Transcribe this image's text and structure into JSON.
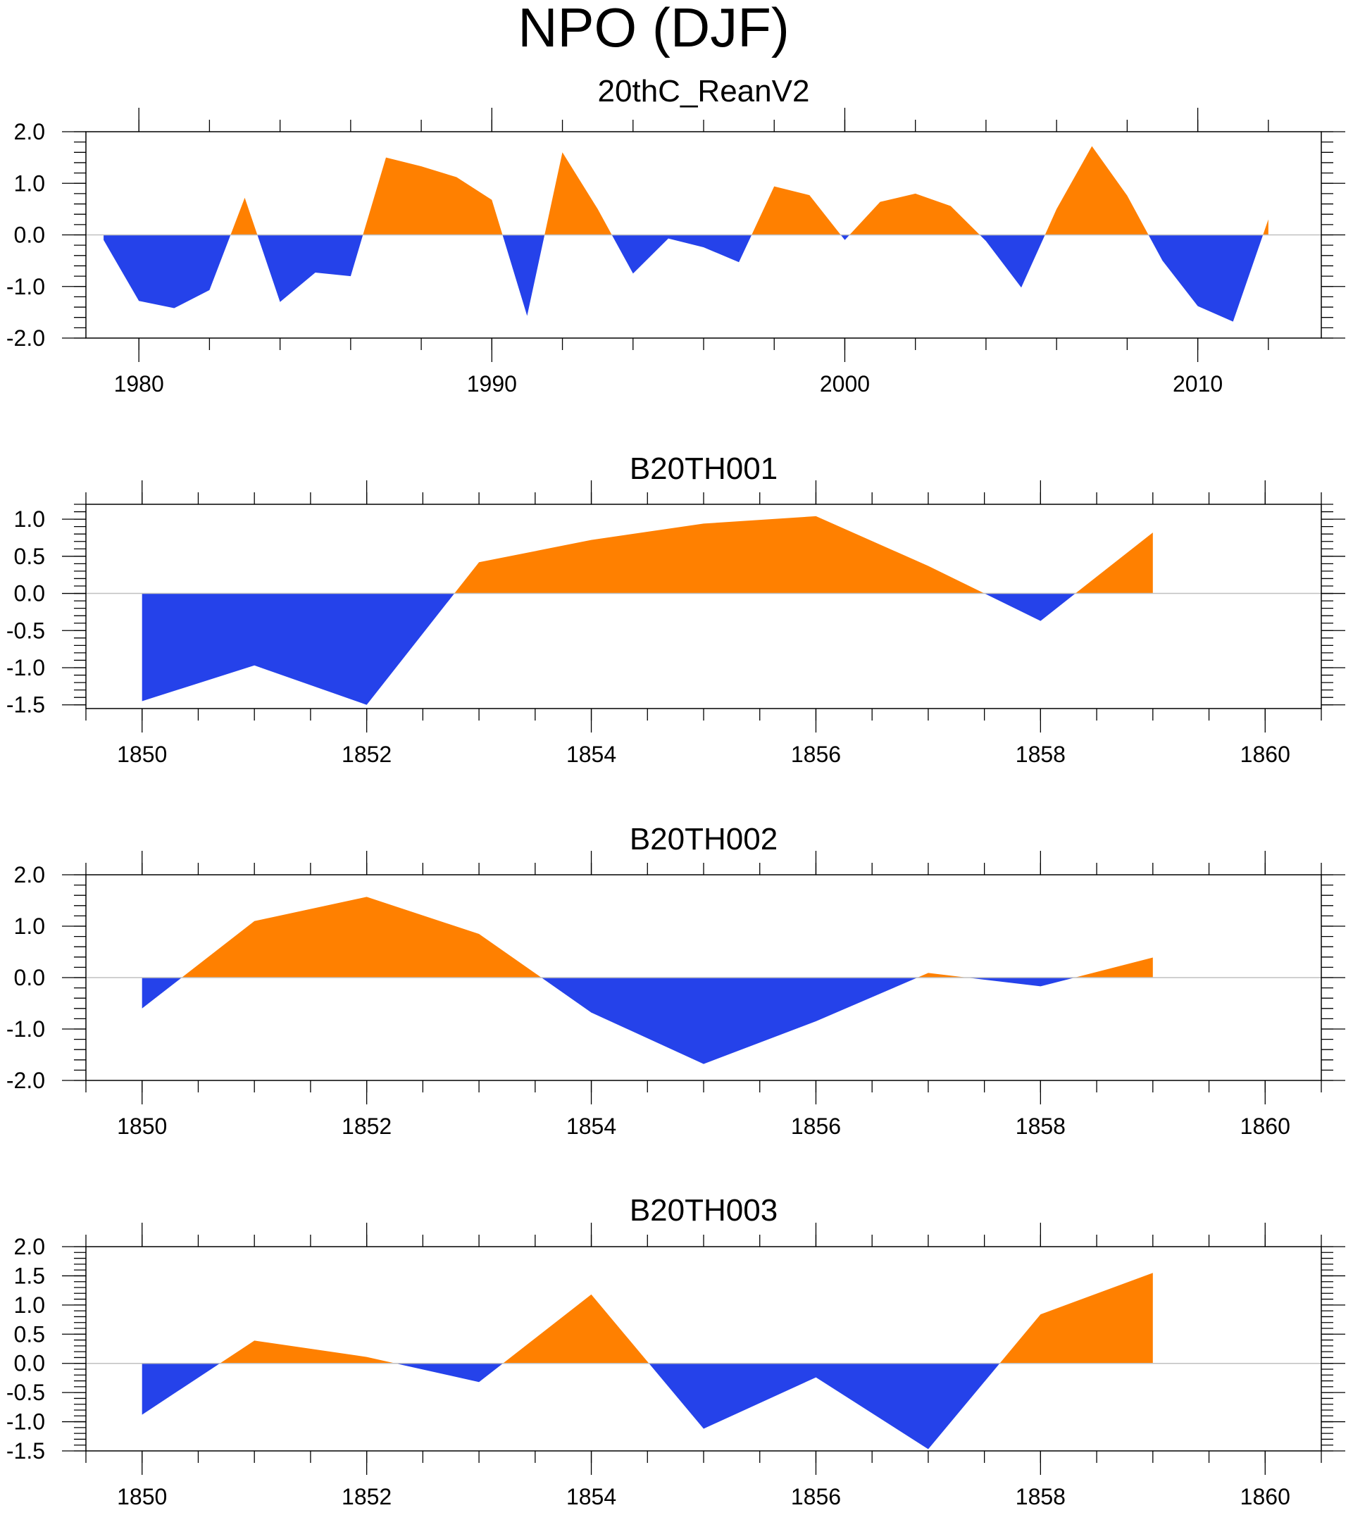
{
  "figure": {
    "title": "NPO (DJF)",
    "colors": {
      "positive": "#ff8000",
      "negative": "#2542ea",
      "frame": "#000000",
      "zero_line": "#c0c0c0"
    }
  },
  "chart_data": [
    {
      "type": "area",
      "title": "20thC_ReanV2",
      "x": [
        1979,
        1980,
        1981,
        1982,
        1983,
        1984,
        1985,
        1986,
        1987,
        1988,
        1989,
        1990,
        1991,
        1992,
        1993,
        1994,
        1995,
        1996,
        1997,
        1998,
        1999,
        2000,
        2001,
        2002,
        2003,
        2004,
        2005,
        2006,
        2007,
        2008,
        2009,
        2010,
        2011,
        2012
      ],
      "values": [
        -0.1,
        -1.28,
        -1.42,
        -1.07,
        0.72,
        -1.3,
        -0.73,
        -0.8,
        1.5,
        1.33,
        1.12,
        0.68,
        -1.57,
        1.6,
        0.5,
        -0.75,
        -0.07,
        -0.24,
        -0.53,
        0.94,
        0.77,
        -0.1,
        0.64,
        0.8,
        0.56,
        -0.12,
        -1.02,
        0.5,
        1.72,
        0.76,
        -0.5,
        -1.38,
        -1.68,
        0.3
      ],
      "xlim": [
        1978.5,
        2013.5
      ],
      "ylim": [
        -2.0,
        2.0
      ],
      "xticks": [
        1980,
        1990,
        2000,
        2010
      ],
      "xtick_labels": [
        "1980",
        "1990",
        "2000",
        "2010"
      ],
      "yticks": [
        -2.0,
        -1.0,
        0.0,
        1.0,
        2.0
      ],
      "ytick_labels": [
        "-2.0",
        "-1.0",
        "0.0",
        "1.0",
        "2.0"
      ],
      "xminor_step": 2,
      "yminor_step": 0.2
    },
    {
      "type": "area",
      "title": "B20TH001",
      "x": [
        1850,
        1851,
        1852,
        1853,
        1854,
        1855,
        1856,
        1857,
        1858,
        1859
      ],
      "values": [
        -1.45,
        -0.97,
        -1.5,
        0.42,
        0.72,
        0.94,
        1.04,
        0.37,
        -0.37,
        0.82
      ],
      "xlim": [
        1849.5,
        1860.5
      ],
      "ylim": [
        -1.55,
        1.2
      ],
      "xticks": [
        1850,
        1852,
        1854,
        1856,
        1858,
        1860
      ],
      "xtick_labels": [
        "1850",
        "1852",
        "1854",
        "1856",
        "1858",
        "1860"
      ],
      "yticks": [
        -1.5,
        -1.0,
        -0.5,
        0.0,
        0.5,
        1.0
      ],
      "ytick_labels": [
        "-1.5",
        "-1.0",
        "-0.5",
        "0.0",
        "0.5",
        "1.0"
      ],
      "xminor_step": 0.5,
      "yminor_step": 0.1
    },
    {
      "type": "area",
      "title": "B20TH002",
      "x": [
        1850,
        1851,
        1852,
        1853,
        1854,
        1855,
        1856,
        1857,
        1858,
        1859
      ],
      "values": [
        -0.6,
        1.1,
        1.57,
        0.85,
        -0.68,
        -1.68,
        -0.85,
        0.09,
        -0.17,
        0.39
      ],
      "xlim": [
        1849.5,
        1860.5
      ],
      "ylim": [
        -2.0,
        2.0
      ],
      "xticks": [
        1850,
        1852,
        1854,
        1856,
        1858,
        1860
      ],
      "xtick_labels": [
        "1850",
        "1852",
        "1854",
        "1856",
        "1858",
        "1860"
      ],
      "yticks": [
        -2.0,
        -1.0,
        0.0,
        1.0,
        2.0
      ],
      "ytick_labels": [
        "-2.0",
        "-1.0",
        "0.0",
        "1.0",
        "2.0"
      ],
      "xminor_step": 0.5,
      "yminor_step": 0.2
    },
    {
      "type": "area",
      "title": "B20TH003",
      "x": [
        1850,
        1851,
        1852,
        1853,
        1854,
        1855,
        1856,
        1857,
        1858,
        1859
      ],
      "values": [
        -0.88,
        0.39,
        0.11,
        -0.32,
        1.18,
        -1.12,
        -0.24,
        -1.47,
        0.84,
        1.55
      ],
      "xlim": [
        1849.5,
        1860.5
      ],
      "ylim": [
        -1.5,
        2.0
      ],
      "xticks": [
        1850,
        1852,
        1854,
        1856,
        1858,
        1860
      ],
      "xtick_labels": [
        "1850",
        "1852",
        "1854",
        "1856",
        "1858",
        "1860"
      ],
      "yticks": [
        -1.5,
        -1.0,
        -0.5,
        0.0,
        0.5,
        1.0,
        1.5,
        2.0
      ],
      "ytick_labels": [
        "-1.5",
        "-1.0",
        "-0.5",
        "0.0",
        "0.5",
        "1.0",
        "1.5",
        "2.0"
      ],
      "xminor_step": 0.5,
      "yminor_step": 0.1
    }
  ]
}
